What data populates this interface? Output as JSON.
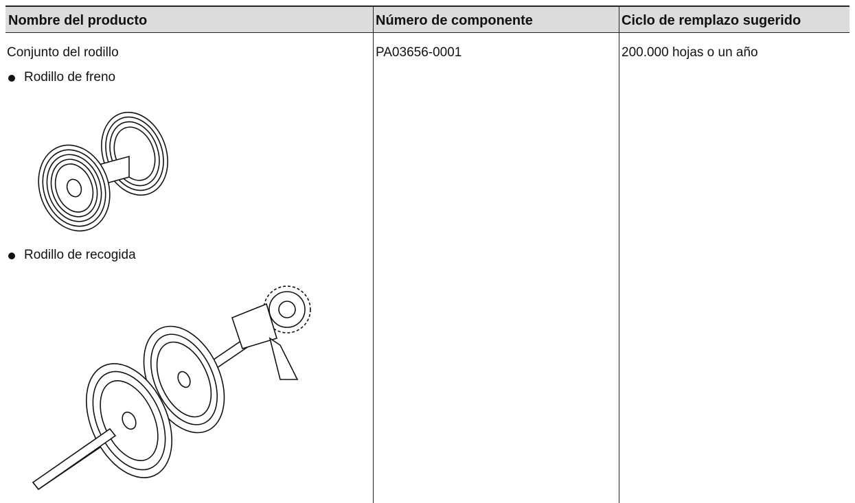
{
  "table": {
    "header": [
      "Nombre del producto",
      "Número de componente",
      "Ciclo de remplazo sugerido"
    ],
    "rows": [
      {
        "product": "Conjunto del rodillo",
        "items": [
          "Rodillo de freno",
          "Rodillo de recogida"
        ],
        "part_number": "PA03656-0001",
        "cycle": "200.000 hojas o un año"
      }
    ]
  }
}
